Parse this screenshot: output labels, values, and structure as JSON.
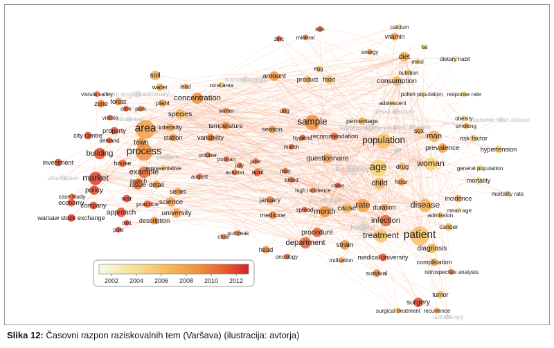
{
  "caption": {
    "prefix": "Slika 12:",
    "text": "Časovni razpon raziskovalnih tem (Varšava) (ilustracija: avtorja)"
  },
  "colors": {
    "scale": [
      "#f2f4c8",
      "#f7dc7e",
      "#f6b455",
      "#ef8c3a",
      "#e9562e",
      "#d8262a"
    ],
    "edge": "#f4a37a",
    "grey_node": "#cfcfcf"
  },
  "colorbar": {
    "ticks": [
      "2002",
      "2004",
      "2006",
      "2008",
      "2010",
      "2012"
    ],
    "year_min": 2001,
    "year_max": 2013
  },
  "terms": [
    {
      "label": "iron",
      "year": 2011,
      "w": 2
    },
    {
      "label": "mineral",
      "year": 2009,
      "w": 2
    },
    {
      "label": "zinc",
      "year": 2011,
      "w": 2
    },
    {
      "label": "calcium",
      "year": 2003,
      "w": 2
    },
    {
      "label": "vitamin",
      "year": 2007,
      "w": 3
    },
    {
      "label": "fat",
      "year": 2003,
      "w": 2
    },
    {
      "label": "energy",
      "year": 2007,
      "w": 2
    },
    {
      "label": "diet",
      "year": 2006,
      "w": 4
    },
    {
      "label": "meal",
      "year": 2004,
      "w": 2
    },
    {
      "label": "dietary habit",
      "year": 2003,
      "w": 2
    },
    {
      "label": "nutrition",
      "year": 2005,
      "w": 2
    },
    {
      "label": "egg",
      "year": 2005,
      "w": 2
    },
    {
      "label": "amount",
      "year": 2008,
      "w": 4
    },
    {
      "label": "product",
      "year": 2005,
      "w": 3
    },
    {
      "label": "food",
      "year": 2006,
      "w": 3
    },
    {
      "label": "consumption",
      "year": 2006,
      "w": 4
    },
    {
      "label": "warsaw region",
      "year": 2002,
      "w": 3,
      "faint": true
    },
    {
      "label": "rural area",
      "year": 2005,
      "w": 2
    },
    {
      "label": "soil",
      "year": 2006,
      "w": 4
    },
    {
      "label": "water",
      "year": 2006,
      "w": 3
    },
    {
      "label": "lead",
      "year": 2007,
      "w": 2
    },
    {
      "label": "from english summary",
      "year": 2002,
      "w": 3,
      "faint": true
    },
    {
      "label": "concentration",
      "year": 2008,
      "w": 5
    },
    {
      "label": "polish population",
      "year": 2003,
      "w": 2
    },
    {
      "label": "response rate",
      "year": 2004,
      "w": 2
    },
    {
      "label": "adolescent",
      "year": 2004,
      "w": 2
    },
    {
      "label": "physical activity",
      "year": 2002,
      "w": 2,
      "faint": true
    },
    {
      "label": "vistula valley",
      "year": 2010,
      "w": 2
    },
    {
      "label": "zone",
      "year": 2009,
      "w": 3
    },
    {
      "label": "forest",
      "year": 2008,
      "w": 3
    },
    {
      "label": "plant",
      "year": 2007,
      "w": 3
    },
    {
      "label": "park",
      "year": 2009,
      "w": 2
    },
    {
      "label": "core",
      "year": 2011,
      "w": 2
    },
    {
      "label": "winter",
      "year": 2008,
      "w": 2
    },
    {
      "label": "species",
      "year": 2006,
      "w": 4
    },
    {
      "label": "dog",
      "year": 2009,
      "w": 2
    },
    {
      "label": "vistula",
      "year": 2010,
      "w": 2
    },
    {
      "label": "vistula river",
      "year": 2002,
      "w": 2,
      "faint": true
    },
    {
      "label": "sample",
      "year": 2008,
      "w": 7
    },
    {
      "label": "percentage",
      "year": 2006,
      "w": 3
    },
    {
      "label": "significant difference",
      "year": 2002,
      "w": 3,
      "faint": true
    },
    {
      "label": "obesity",
      "year": 2004,
      "w": 2
    },
    {
      "label": "ischemic heart disease",
      "year": 2002,
      "w": 2,
      "faint": true
    },
    {
      "label": "smoking",
      "year": 2007,
      "w": 2
    },
    {
      "label": "blood pressure",
      "year": 2002,
      "w": 2,
      "faint": true
    },
    {
      "label": "sex",
      "year": 2006,
      "w": 3
    },
    {
      "label": "man",
      "year": 2006,
      "w": 5
    },
    {
      "label": "area",
      "year": 2007,
      "w": 9
    },
    {
      "label": "intensity",
      "year": 2007,
      "w": 3
    },
    {
      "label": "temperature",
      "year": 2009,
      "w": 3
    },
    {
      "label": "season",
      "year": 2008,
      "w": 3
    },
    {
      "label": "property",
      "year": 2011,
      "w": 3
    },
    {
      "label": "city centre",
      "year": 2011,
      "w": 3
    },
    {
      "label": "demand",
      "year": 2011,
      "w": 2
    },
    {
      "label": "town",
      "year": 2008,
      "w": 4
    },
    {
      "label": "station",
      "year": 2008,
      "w": 3
    },
    {
      "label": "variability",
      "year": 2009,
      "w": 3
    },
    {
      "label": "hygiene",
      "year": 2011,
      "w": 2
    },
    {
      "label": "recommendation",
      "year": 2010,
      "w": 3
    },
    {
      "label": "population",
      "year": 2005,
      "w": 7
    },
    {
      "label": "risk factor",
      "year": 2004,
      "w": 3
    },
    {
      "label": "prevalence",
      "year": 2007,
      "w": 4
    },
    {
      "label": "girl",
      "year": 2002,
      "w": 2,
      "faint": true
    },
    {
      "label": "hypertension",
      "year": 2004,
      "w": 3
    },
    {
      "label": "process",
      "year": 2008,
      "w": 8
    },
    {
      "label": "building",
      "year": 2011,
      "w": 5
    },
    {
      "label": "element",
      "year": 2002,
      "w": 3,
      "faint": true
    },
    {
      "label": "october",
      "year": 2009,
      "w": 2
    },
    {
      "label": "march",
      "year": 2010,
      "w": 2
    },
    {
      "label": "questionnaire",
      "year": 2007,
      "w": 4
    },
    {
      "label": "frequency",
      "year": 2002,
      "w": 5,
      "faint": true
    },
    {
      "label": "age",
      "year": 2004,
      "w": 8
    },
    {
      "label": "drug",
      "year": 2006,
      "w": 3
    },
    {
      "label": "woman",
      "year": 2004,
      "w": 6
    },
    {
      "label": "investment",
      "year": 2011,
      "w": 3
    },
    {
      "label": "house",
      "year": 2010,
      "w": 3
    },
    {
      "label": "representative",
      "year": 2005,
      "w": 2
    },
    {
      "label": "poznan",
      "year": 2010,
      "w": 2
    },
    {
      "label": "july",
      "year": 2010,
      "w": 2
    },
    {
      "label": "june",
      "year": 2010,
      "w": 2
    },
    {
      "label": "general population",
      "year": 2004,
      "w": 2
    },
    {
      "label": "example",
      "year": 2010,
      "w": 5
    },
    {
      "label": "autumn",
      "year": 2010,
      "w": 2
    },
    {
      "label": "april",
      "year": 2010,
      "w": 3
    },
    {
      "label": "may",
      "year": 2010,
      "w": 2
    },
    {
      "label": "market",
      "year": 2012,
      "w": 6
    },
    {
      "label": "august",
      "year": 2010,
      "w": 2
    },
    {
      "label": "blood",
      "year": 2010,
      "w": 2
    },
    {
      "label": "urban space",
      "year": 2002,
      "w": 2,
      "faint": true
    },
    {
      "label": "search",
      "year": 2007,
      "w": 2
    },
    {
      "label": "child",
      "year": 2006,
      "w": 5
    },
    {
      "label": "hour",
      "year": 2008,
      "w": 3
    },
    {
      "label": "mortality",
      "year": 2003,
      "w": 3
    },
    {
      "label": "issue",
      "year": 2010,
      "w": 4
    },
    {
      "label": "detail",
      "year": 2008,
      "w": 3
    },
    {
      "label": "policy",
      "year": 2011,
      "w": 4
    },
    {
      "label": "series",
      "year": 2007,
      "w": 3
    },
    {
      "label": "high incidence",
      "year": 2009,
      "w": 2
    },
    {
      "label": "rome",
      "year": 2011,
      "w": 2
    },
    {
      "label": "case study",
      "year": 2011,
      "w": 2
    },
    {
      "label": "war",
      "year": 2011,
      "w": 3
    },
    {
      "label": "science",
      "year": 2007,
      "w": 4
    },
    {
      "label": "incidence",
      "year": 2006,
      "w": 3
    },
    {
      "label": "mortality rate",
      "year": 2004,
      "w": 2
    },
    {
      "label": "economy",
      "year": 2011,
      "w": 3
    },
    {
      "label": "company",
      "year": 2011,
      "w": 3
    },
    {
      "label": "practice",
      "year": 2010,
      "w": 3
    },
    {
      "label": "university",
      "year": 2007,
      "w": 4
    },
    {
      "label": "january",
      "year": 2009,
      "w": 3
    },
    {
      "label": "present study",
      "year": 2002,
      "w": 2,
      "faint": true
    },
    {
      "label": "spread",
      "year": 2010,
      "w": 2
    },
    {
      "label": "month",
      "year": 2008,
      "w": 5
    },
    {
      "label": "cause",
      "year": 2006,
      "w": 4
    },
    {
      "label": "rate",
      "year": 2007,
      "w": 6
    },
    {
      "label": "duration",
      "year": 2007,
      "w": 3
    },
    {
      "label": "disease",
      "year": 2006,
      "w": 6
    },
    {
      "label": "mean age",
      "year": 2003,
      "w": 2
    },
    {
      "label": "approach",
      "year": 2011,
      "w": 4
    },
    {
      "label": "warsaw stock exchange",
      "year": 2012,
      "w": 3
    },
    {
      "label": "text",
      "year": 2011,
      "w": 2
    },
    {
      "label": "description",
      "year": 2008,
      "w": 3
    },
    {
      "label": "pole",
      "year": 2011,
      "w": 2
    },
    {
      "label": "medicine",
      "year": 2009,
      "w": 3
    },
    {
      "label": "infection",
      "year": 2010,
      "w": 5
    },
    {
      "label": "admission",
      "year": 2006,
      "w": 2
    },
    {
      "label": "cancer",
      "year": 2006,
      "w": 3
    },
    {
      "label": "hospital",
      "year": 2002,
      "w": 4,
      "faint": true
    },
    {
      "label": "chair",
      "year": 2009,
      "w": 2
    },
    {
      "label": "outbreak",
      "year": 2009,
      "w": 2
    },
    {
      "label": "procedure",
      "year": 2010,
      "w": 4
    },
    {
      "label": "treatment",
      "year": 2005,
      "w": 6
    },
    {
      "label": "patient",
      "year": 2005,
      "w": 9
    },
    {
      "label": "department",
      "year": 2010,
      "w": 5
    },
    {
      "label": "strain",
      "year": 2008,
      "w": 4
    },
    {
      "label": "diagnosis",
      "year": 2006,
      "w": 4
    },
    {
      "label": "head",
      "year": 2008,
      "w": 3
    },
    {
      "label": "oncology",
      "year": 2010,
      "w": 2
    },
    {
      "label": "indication",
      "year": 2007,
      "w": 2
    },
    {
      "label": "medical university",
      "year": 2011,
      "w": 3
    },
    {
      "label": "complication",
      "year": 2007,
      "w": 3
    },
    {
      "label": "survival",
      "year": 2009,
      "w": 3
    },
    {
      "label": "retrospective analysis",
      "year": 2009,
      "w": 2
    },
    {
      "label": "tumor",
      "year": 2005,
      "w": 3
    },
    {
      "label": "surgery",
      "year": 2011,
      "w": 4
    },
    {
      "label": "surgical treatment",
      "year": 2006,
      "w": 2
    },
    {
      "label": "recurrence",
      "year": 2007,
      "w": 2
    },
    {
      "label": "radiotherapy",
      "year": 2002,
      "w": 2,
      "faint": true
    }
  ]
}
